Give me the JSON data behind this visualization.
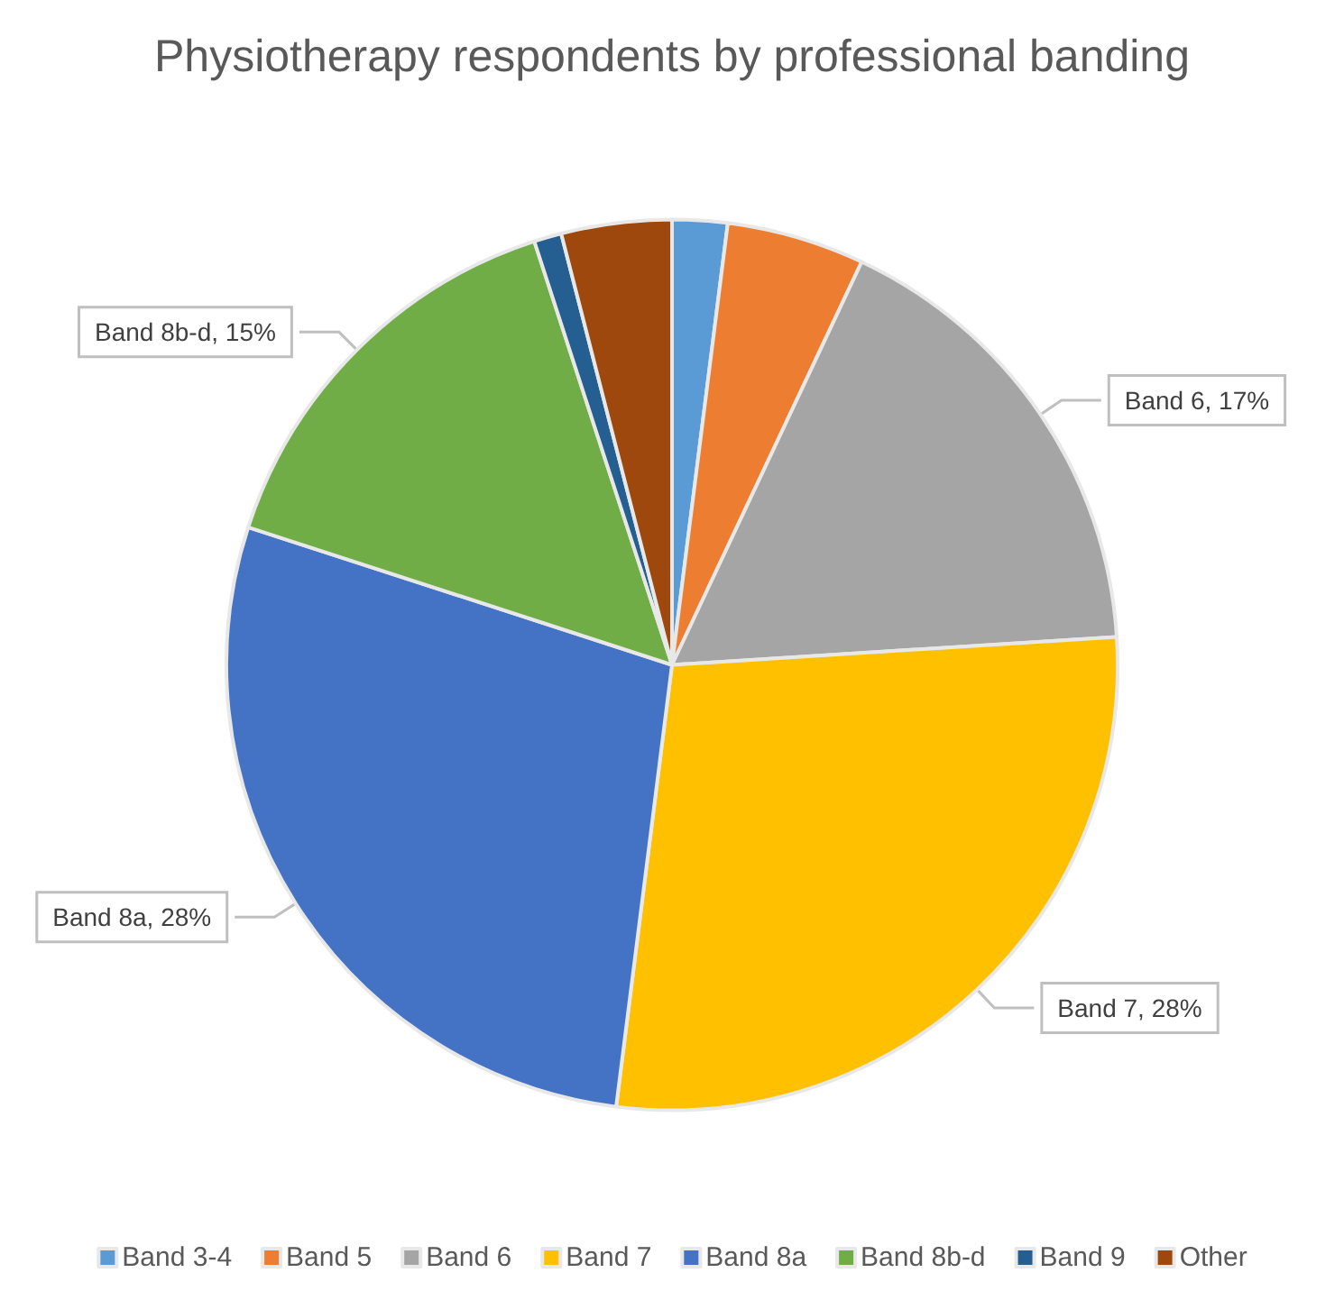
{
  "chart_data": {
    "type": "pie",
    "title": "Physiotherapy respondents by professional banding",
    "categories": [
      "Band 3-4",
      "Band 5",
      "Band 6",
      "Band 7",
      "Band 8a",
      "Band 8b-d",
      "Band 9",
      "Other"
    ],
    "values": [
      2,
      5,
      17,
      28,
      28,
      15,
      1,
      4
    ],
    "colors": [
      "#5b9bd5",
      "#ed7d31",
      "#a5a5a5",
      "#ffc000",
      "#4472c4",
      "#70ad47",
      "#255e91",
      "#9e480e"
    ],
    "value_labels": [
      null,
      null,
      "Band 6, 17%",
      "Band 7, 28%",
      "Band 8a, 28%",
      "Band 8b-d, 15%",
      null,
      null
    ],
    "legend": "bottom"
  }
}
